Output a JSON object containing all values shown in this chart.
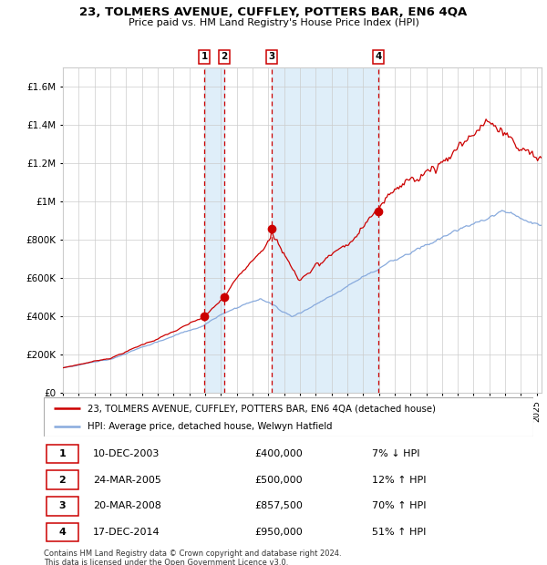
{
  "title": "23, TOLMERS AVENUE, CUFFLEY, POTTERS BAR, EN6 4QA",
  "subtitle": "Price paid vs. HM Land Registry's House Price Index (HPI)",
  "hpi_line_color": "#88aadd",
  "price_line_color": "#cc0000",
  "dot_color": "#cc0000",
  "background_color": "#ffffff",
  "grid_color": "#cccccc",
  "shade_color": "#d8eaf8",
  "ylim": [
    0,
    1700000
  ],
  "yticks": [
    0,
    200000,
    400000,
    600000,
    800000,
    1000000,
    1200000,
    1400000,
    1600000
  ],
  "ytick_labels": [
    "£0",
    "£200K",
    "£400K",
    "£600K",
    "£800K",
    "£1M",
    "£1.2M",
    "£1.4M",
    "£1.6M"
  ],
  "sale_years": [
    2003.958,
    2005.229,
    2008.221,
    2014.958
  ],
  "sale_prices": [
    400000,
    500000,
    857500,
    950000
  ],
  "xmin": 1995.0,
  "xmax": 2025.3,
  "legend_line1": "23, TOLMERS AVENUE, CUFFLEY, POTTERS BAR, EN6 4QA (detached house)",
  "legend_line2": "HPI: Average price, detached house, Welwyn Hatfield",
  "table_rows": [
    {
      "num": 1,
      "date": "10-DEC-2003",
      "price": "£400,000",
      "pct": "7% ↓ HPI"
    },
    {
      "num": 2,
      "date": "24-MAR-2005",
      "price": "£500,000",
      "pct": "12% ↑ HPI"
    },
    {
      "num": 3,
      "date": "20-MAR-2008",
      "price": "£857,500",
      "pct": "70% ↑ HPI"
    },
    {
      "num": 4,
      "date": "17-DEC-2014",
      "price": "£950,000",
      "pct": "51% ↑ HPI"
    }
  ],
  "footer": "Contains HM Land Registry data © Crown copyright and database right 2024.\nThis data is licensed under the Open Government Licence v3.0."
}
